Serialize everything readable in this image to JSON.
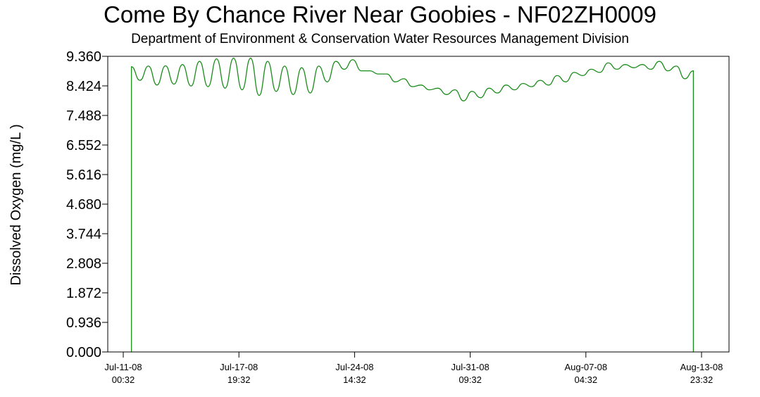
{
  "chart_data": {
    "type": "line",
    "title": "Come By Chance River Near Goobies - NF02ZH0009",
    "subtitle": "Department of Environment & Conservation Water Resources Management Division",
    "ylabel": "Dissolved Oxygen (mg/L )",
    "xlabel": "",
    "ylim": [
      0,
      9.36
    ],
    "y_ticks": [
      "0.000",
      "0.936",
      "1.872",
      "2.808",
      "3.744",
      "4.680",
      "5.616",
      "6.552",
      "7.488",
      "8.424",
      "9.360"
    ],
    "x_ticks": [
      {
        "date": "Jul-11-08",
        "time": "00:32"
      },
      {
        "date": "Jul-17-08",
        "time": "19:32"
      },
      {
        "date": "Jul-24-08",
        "time": "14:32"
      },
      {
        "date": "Jul-31-08",
        "time": "09:32"
      },
      {
        "date": "Aug-07-08",
        "time": "04:32"
      },
      {
        "date": "Aug-13-08",
        "time": "23:32"
      }
    ],
    "grid": false,
    "line_color": "#1a8c1a",
    "series": [
      {
        "x": [
          "2008-07-11 12:00",
          "2008-07-12 00:00",
          "2008-07-12 12:00",
          "2008-07-13 00:00",
          "2008-07-13 12:00",
          "2008-07-14 00:00",
          "2008-07-14 12:00",
          "2008-07-15 00:00",
          "2008-07-15 12:00",
          "2008-07-16 00:00",
          "2008-07-16 12:00",
          "2008-07-17 00:00",
          "2008-07-17 12:00",
          "2008-07-18 00:00",
          "2008-07-18 12:00",
          "2008-07-19 00:00",
          "2008-07-19 12:00",
          "2008-07-20 00:00",
          "2008-07-20 12:00",
          "2008-07-21 00:00",
          "2008-07-21 12:00",
          "2008-07-22 00:00",
          "2008-07-22 12:00",
          "2008-07-23 00:00",
          "2008-07-23 12:00",
          "2008-07-24 00:00",
          "2008-07-24 12:00",
          "2008-07-25 00:00",
          "2008-07-25 12:00",
          "2008-07-26 00:00",
          "2008-07-26 12:00",
          "2008-07-27 00:00",
          "2008-07-27 12:00",
          "2008-07-28 00:00",
          "2008-07-28 12:00",
          "2008-07-29 00:00",
          "2008-07-29 12:00",
          "2008-07-30 00:00",
          "2008-07-30 12:00",
          "2008-07-31 00:00",
          "2008-07-31 12:00",
          "2008-08-01 00:00",
          "2008-08-01 12:00",
          "2008-08-02 00:00",
          "2008-08-02 12:00",
          "2008-08-03 00:00",
          "2008-08-03 12:00",
          "2008-08-04 00:00",
          "2008-08-04 12:00",
          "2008-08-05 00:00",
          "2008-08-05 12:00",
          "2008-08-06 00:00",
          "2008-08-06 12:00",
          "2008-08-07 00:00",
          "2008-08-07 12:00",
          "2008-08-08 00:00",
          "2008-08-08 12:00",
          "2008-08-09 00:00",
          "2008-08-09 12:00",
          "2008-08-10 00:00",
          "2008-08-10 12:00",
          "2008-08-11 00:00",
          "2008-08-11 12:00",
          "2008-08-12 00:00",
          "2008-08-12 12:00",
          "2008-08-13 00:00",
          "2008-08-13 12:00"
        ],
        "values": [
          9.03,
          8.6,
          9.05,
          8.45,
          9.06,
          8.48,
          9.1,
          8.42,
          9.2,
          8.4,
          9.28,
          8.35,
          9.3,
          8.3,
          9.3,
          8.12,
          9.2,
          8.25,
          9.05,
          8.15,
          9.0,
          8.2,
          9.05,
          8.55,
          9.2,
          8.95,
          9.25,
          8.9,
          8.9,
          8.8,
          8.8,
          8.55,
          8.65,
          8.4,
          8.45,
          8.3,
          8.35,
          8.15,
          8.3,
          7.95,
          8.25,
          8.05,
          8.35,
          8.2,
          8.45,
          8.3,
          8.5,
          8.4,
          8.6,
          8.45,
          8.75,
          8.55,
          8.85,
          8.75,
          8.95,
          8.85,
          9.15,
          8.95,
          9.1,
          9.0,
          9.1,
          8.95,
          9.2,
          8.9,
          9.05,
          8.65,
          8.9
        ]
      }
    ]
  }
}
